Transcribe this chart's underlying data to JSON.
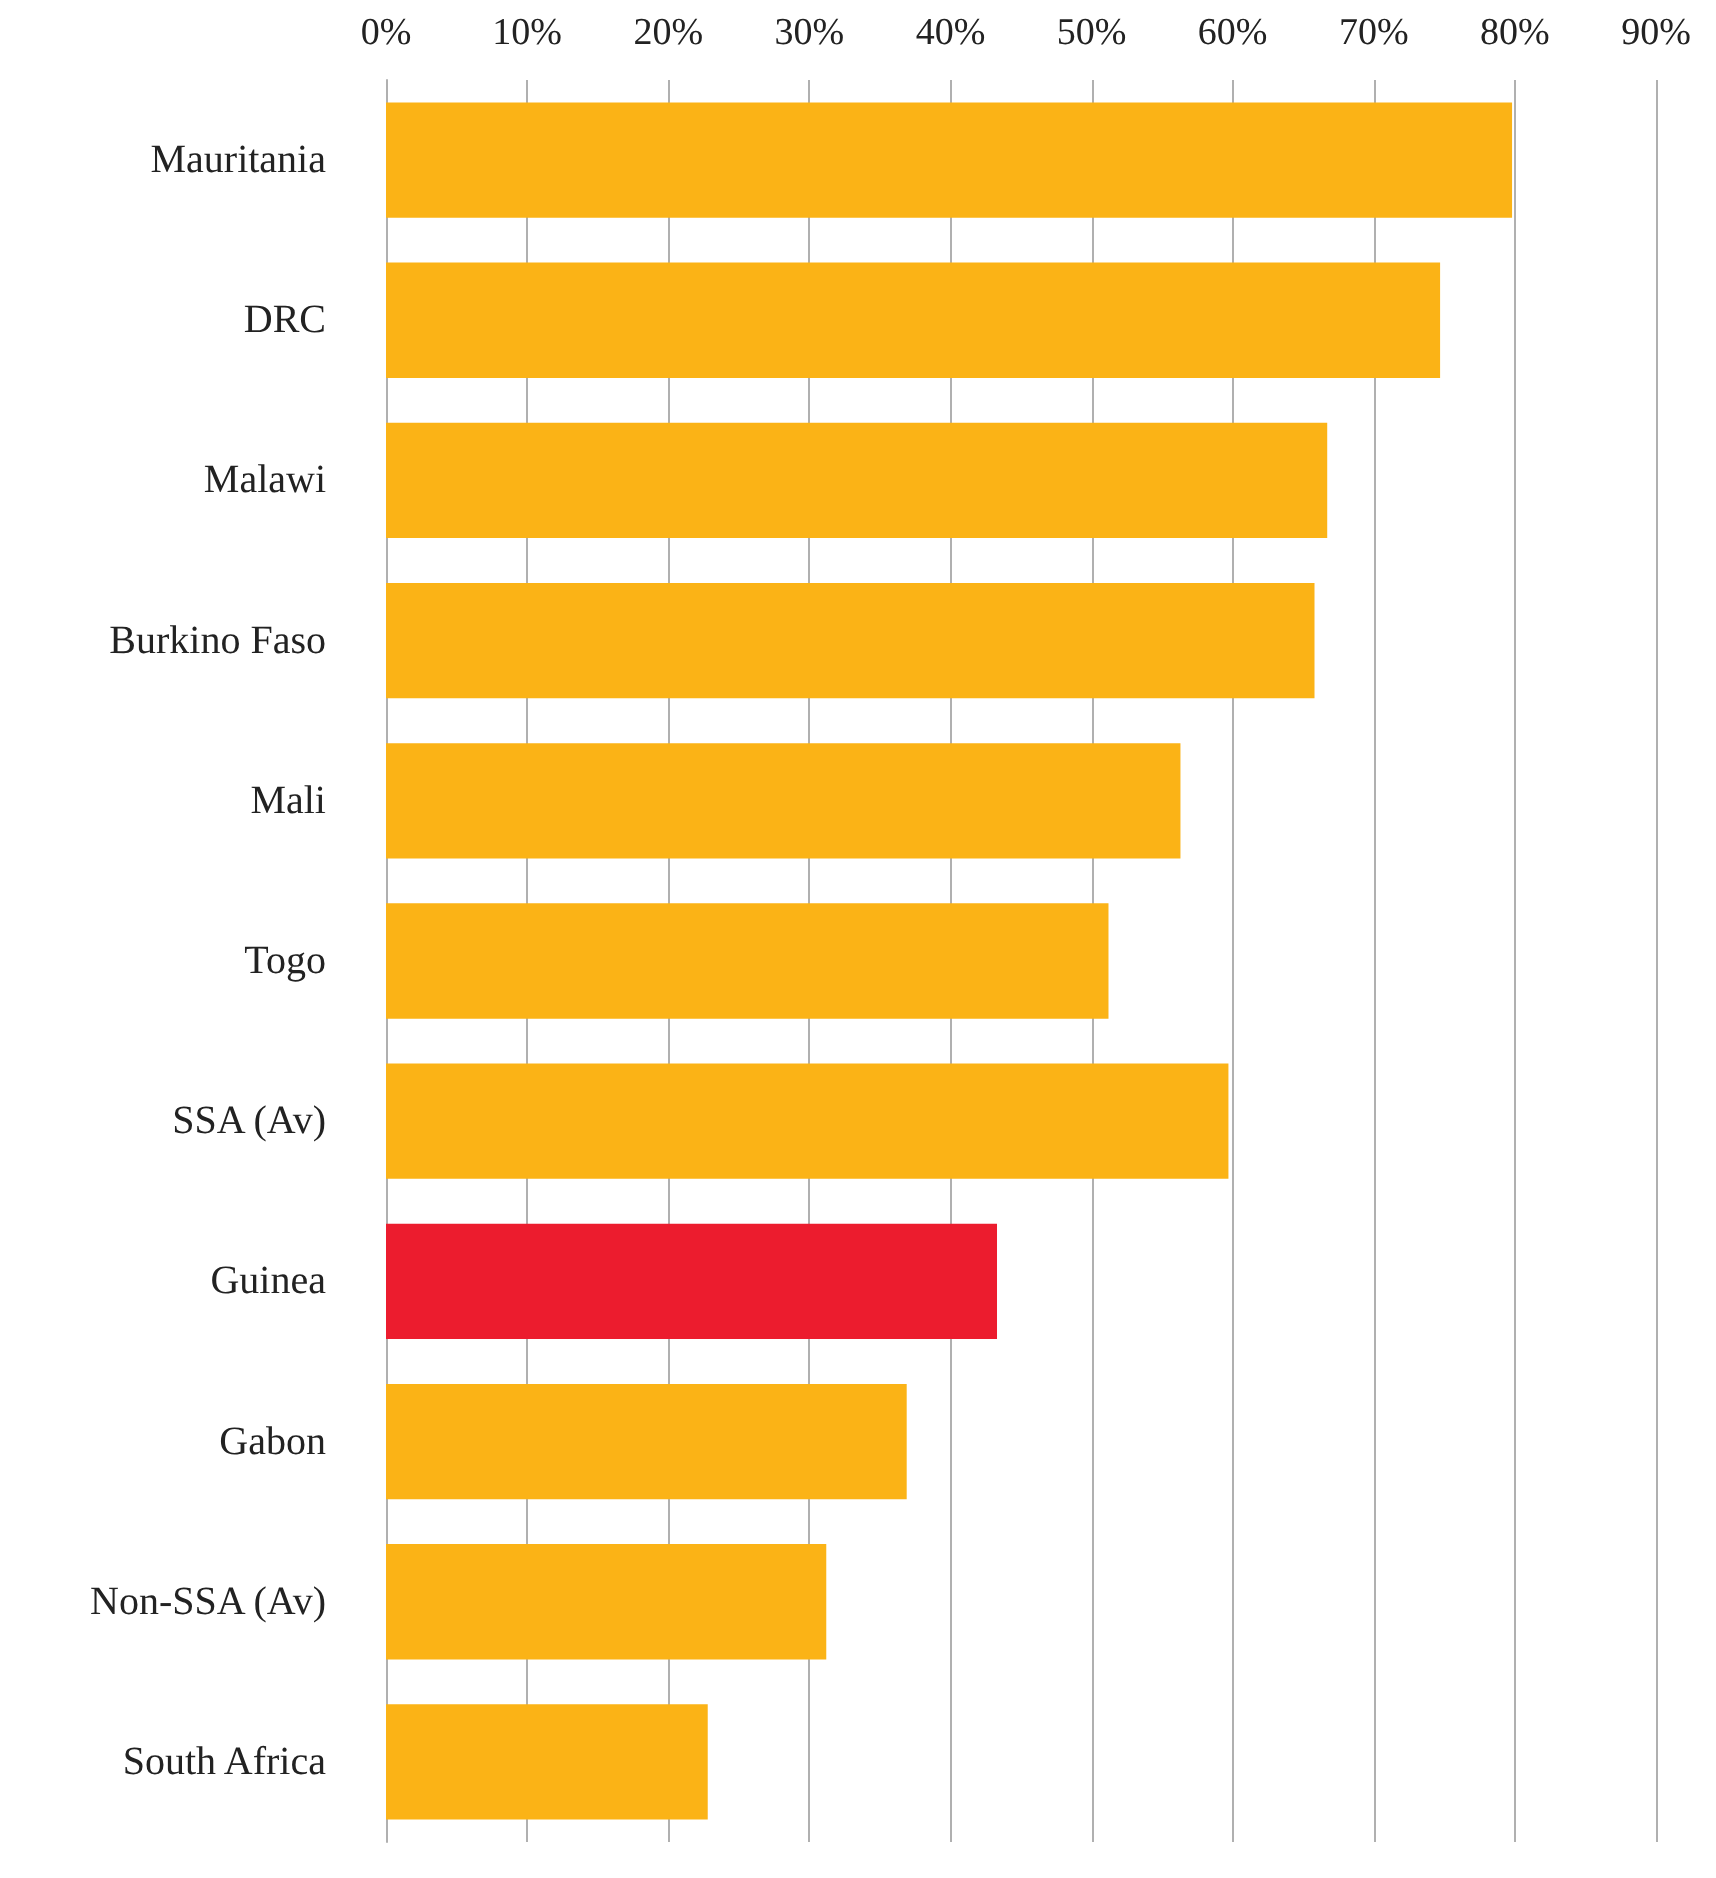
{
  "chart_data": {
    "type": "bar",
    "orientation": "horizontal",
    "categories": [
      "Mauritania",
      "DRC",
      "Malawi",
      "Burkino Faso",
      "Mali",
      "Togo",
      "SSA (Av)",
      "Guinea",
      "Gabon",
      "Non-SSA (Av)",
      "South Africa"
    ],
    "values": [
      79.8,
      74.7,
      66.7,
      65.8,
      56.3,
      51.2,
      59.7,
      43.3,
      36.9,
      31.2,
      22.8
    ],
    "colors": [
      "#fbb316",
      "#fbb316",
      "#fbb316",
      "#fbb316",
      "#fbb316",
      "#fbb316",
      "#fbb316",
      "#ec1c2e",
      "#fbb316",
      "#fbb316",
      "#fbb316"
    ],
    "xlim": [
      0,
      90
    ],
    "xticks": [
      {
        "value": 0,
        "label": "0%"
      },
      {
        "value": 10,
        "label": "10%"
      },
      {
        "value": 20,
        "label": "20%"
      },
      {
        "value": 30,
        "label": "30%"
      },
      {
        "value": 40,
        "label": "40%"
      },
      {
        "value": 50,
        "label": "50%"
      },
      {
        "value": 60,
        "label": "60%"
      },
      {
        "value": 70,
        "label": "70%"
      },
      {
        "value": 80,
        "label": "80%"
      },
      {
        "value": 90,
        "label": "90%"
      }
    ],
    "grid": "x"
  }
}
